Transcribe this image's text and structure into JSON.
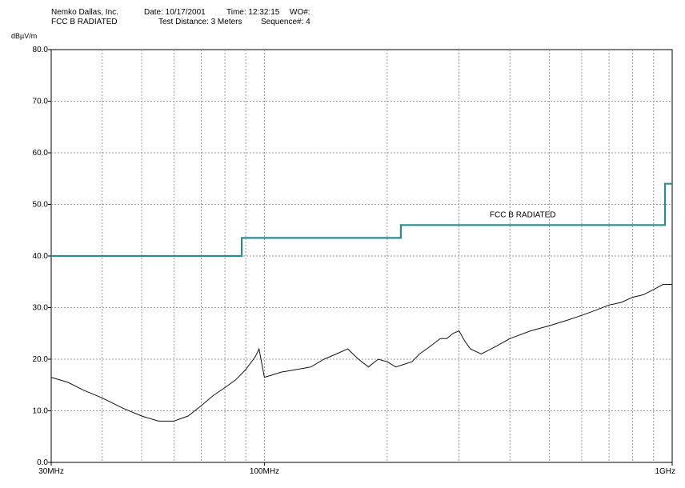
{
  "header": {
    "company": "Nemko Dallas, Inc.",
    "date": "Date: 10/17/2001",
    "time": "Time: 12:32:15",
    "wo": "WO#:",
    "test_name": "FCC B RADIATED",
    "distance": "Test Distance: 3 Meters",
    "sequence": "Sequence#:  4"
  },
  "chart_data": {
    "type": "line",
    "ylabel": "dBµV/m",
    "x_scale": "log",
    "x_unit": "MHz",
    "xlim": [
      30,
      1000
    ],
    "ylim": [
      0,
      80
    ],
    "grid": true,
    "y_ticks": [
      0,
      10,
      20,
      30,
      40,
      50,
      60,
      70,
      80
    ],
    "y_tick_labels": [
      "0.0",
      "10.0",
      "20.0",
      "30.0",
      "40.0",
      "50.0",
      "60.0",
      "70.0",
      "80.0"
    ],
    "x_tick_labels": [
      {
        "value": 30,
        "label": "30MHz"
      },
      {
        "value": 100,
        "label": "100MHz"
      },
      {
        "value": 1000,
        "label": "1GHz"
      }
    ],
    "series": [
      {
        "name": "FCC B RADIATED",
        "role": "limit",
        "color": "#2e8b8b",
        "x": [
          30,
          88,
          88,
          216,
          216,
          960,
          960,
          1000
        ],
        "y": [
          40.0,
          40.0,
          43.5,
          43.5,
          46.0,
          46.0,
          54.0,
          54.0
        ]
      },
      {
        "role": "measurement",
        "color": "#111111",
        "x": [
          30,
          33,
          36,
          40,
          45,
          50,
          55,
          60,
          65,
          70,
          75,
          80,
          85,
          90,
          95,
          97,
          100,
          105,
          110,
          120,
          130,
          140,
          150,
          160,
          170,
          180,
          190,
          200,
          210,
          220,
          230,
          240,
          250,
          260,
          270,
          280,
          290,
          300,
          310,
          320,
          340,
          360,
          380,
          400,
          450,
          500,
          550,
          600,
          650,
          700,
          750,
          800,
          850,
          900,
          950,
          1000
        ],
        "y": [
          16.5,
          15.5,
          14.0,
          12.5,
          10.5,
          9.0,
          8.0,
          8.0,
          9.0,
          11.0,
          13.0,
          14.5,
          16.0,
          18.0,
          20.5,
          22.0,
          16.5,
          17.0,
          17.5,
          18.0,
          18.5,
          20.0,
          21.0,
          22.0,
          20.0,
          18.5,
          20.0,
          19.5,
          18.5,
          19.0,
          19.5,
          21.0,
          22.0,
          23.0,
          24.0,
          24.0,
          25.0,
          25.5,
          23.5,
          22.0,
          21.0,
          22.0,
          23.0,
          24.0,
          25.5,
          26.5,
          27.5,
          28.5,
          29.5,
          30.5,
          31.0,
          32.0,
          32.5,
          33.5,
          34.5,
          34.5
        ]
      }
    ],
    "annotations": [
      {
        "text": "FCC B RADIATED",
        "x": 430,
        "y": 47.5
      }
    ]
  }
}
